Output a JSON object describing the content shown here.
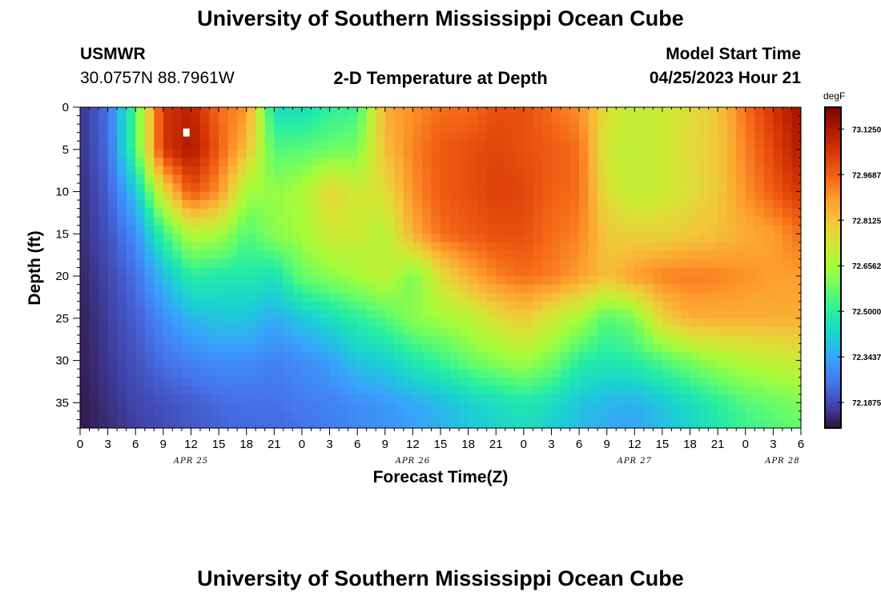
{
  "page": {
    "title": "University of Southern Mississippi Ocean Cube",
    "station_name": "USMWR",
    "station_coords": "30.0757N  88.7961W",
    "plot_title": "2-D Temperature at Depth",
    "model_start_label": "Model Start Time",
    "model_start_value": "04/25/2023 Hour 21",
    "footer_title": "University of Southern Mississippi Ocean Cube"
  },
  "chart_data": {
    "type": "heatmap",
    "title": "2-D Temperature at Depth",
    "xlabel": "Forecast Time(Z)",
    "ylabel": "Depth (ft)",
    "colorbar_unit": "degF",
    "colorbar_ticks": [
      "73.1250",
      "72.9687",
      "72.8125",
      "72.6562",
      "72.5000",
      "72.3437",
      "72.1875"
    ],
    "colorbar_values": [
      73.125,
      72.96875,
      72.8125,
      72.65625,
      72.5,
      72.34375,
      72.1875
    ],
    "colorbar_range": [
      72.1,
      73.2
    ],
    "colormap": [
      "#30123b",
      "#4145ab",
      "#4675ed",
      "#39a2fc",
      "#1bcfd4",
      "#24eca6",
      "#61fc6c",
      "#a4fc3b",
      "#d1e834",
      "#f3c63a",
      "#fe9b2d",
      "#f36315",
      "#d93806",
      "#b11901",
      "#7a0402"
    ],
    "x_ticks": [
      "0",
      "3",
      "6",
      "9",
      "12",
      "15",
      "18",
      "21",
      "0",
      "3",
      "6",
      "9",
      "12",
      "15",
      "18",
      "21",
      "0",
      "3",
      "6",
      "9",
      "12",
      "15",
      "18",
      "21",
      "0",
      "3",
      "6"
    ],
    "x_dates": [
      "APR 25",
      "APR 26",
      "APR 27",
      "APR 28"
    ],
    "x_range_hours": [
      0,
      78
    ],
    "y_ticks": [
      "0",
      "5",
      "10",
      "15",
      "20",
      "25",
      "30",
      "35"
    ],
    "y_range": [
      0,
      38
    ],
    "field": {
      "times": [
        0,
        3,
        6,
        9,
        12,
        15,
        18,
        21,
        24,
        27,
        30,
        33,
        36,
        39,
        42,
        45,
        48,
        51,
        54,
        57,
        60,
        63,
        66,
        69,
        72,
        75,
        78
      ],
      "depths": [
        0,
        5,
        10,
        15,
        20,
        25,
        30,
        35,
        38
      ],
      "temperature_degF": [
        [
          72.15,
          72.25,
          72.55,
          73.05,
          73.1,
          72.95,
          72.9,
          72.45,
          72.45,
          72.5,
          72.52,
          72.85,
          72.9,
          72.95,
          72.95,
          73.0,
          73.0,
          72.95,
          72.9,
          72.75,
          72.7,
          72.72,
          72.75,
          72.8,
          72.95,
          73.05,
          73.15
        ],
        [
          72.15,
          72.24,
          72.55,
          73.05,
          73.13,
          72.98,
          72.82,
          72.55,
          72.56,
          72.58,
          72.6,
          72.82,
          72.92,
          72.98,
          73.0,
          73.02,
          73.0,
          72.98,
          72.95,
          72.72,
          72.7,
          72.72,
          72.76,
          72.8,
          72.92,
          73.02,
          73.12
        ],
        [
          72.14,
          72.22,
          72.4,
          72.75,
          73.0,
          72.9,
          72.65,
          72.63,
          72.66,
          72.78,
          72.72,
          72.75,
          72.9,
          72.98,
          73.0,
          73.03,
          73.02,
          72.97,
          72.95,
          72.75,
          72.7,
          72.72,
          72.75,
          72.8,
          72.9,
          72.98,
          73.05
        ],
        [
          72.14,
          72.2,
          72.3,
          72.52,
          72.68,
          72.66,
          72.55,
          72.62,
          72.65,
          72.72,
          72.72,
          72.68,
          72.85,
          72.95,
          72.98,
          73.0,
          73.0,
          72.95,
          72.92,
          72.8,
          72.78,
          72.78,
          72.8,
          72.82,
          72.85,
          72.88,
          72.95
        ],
        [
          72.13,
          72.18,
          72.25,
          72.38,
          72.5,
          72.48,
          72.48,
          72.46,
          72.58,
          72.62,
          72.66,
          72.7,
          72.6,
          72.75,
          72.85,
          72.92,
          72.95,
          72.93,
          72.88,
          72.82,
          72.88,
          72.92,
          72.93,
          72.92,
          72.9,
          72.88,
          72.88
        ],
        [
          72.12,
          72.17,
          72.22,
          72.3,
          72.37,
          72.4,
          72.4,
          72.35,
          72.4,
          72.45,
          72.5,
          72.55,
          72.62,
          72.65,
          72.68,
          72.75,
          72.8,
          72.72,
          72.66,
          72.55,
          72.6,
          72.78,
          72.85,
          72.85,
          72.85,
          72.85,
          72.85
        ],
        [
          72.12,
          72.16,
          72.2,
          72.25,
          72.28,
          72.3,
          72.3,
          72.28,
          72.3,
          72.33,
          72.4,
          72.42,
          72.48,
          72.52,
          72.58,
          72.62,
          72.65,
          72.6,
          72.5,
          72.48,
          72.5,
          72.55,
          72.6,
          72.65,
          72.68,
          72.7,
          72.72
        ],
        [
          72.11,
          72.15,
          72.18,
          72.2,
          72.22,
          72.24,
          72.25,
          72.25,
          72.27,
          72.28,
          72.3,
          72.32,
          72.35,
          72.38,
          72.42,
          72.45,
          72.48,
          72.45,
          72.4,
          72.37,
          72.36,
          72.4,
          72.45,
          72.5,
          72.55,
          72.58,
          72.6
        ],
        [
          72.11,
          72.14,
          72.17,
          72.19,
          72.21,
          72.23,
          72.24,
          72.24,
          72.25,
          72.27,
          72.29,
          72.31,
          72.33,
          72.36,
          72.4,
          72.43,
          72.45,
          72.42,
          72.38,
          72.35,
          72.34,
          72.38,
          72.43,
          72.48,
          72.52,
          72.55,
          72.58
        ]
      ]
    },
    "marker": {
      "time_hours": 11.5,
      "depth_ft": 3
    }
  }
}
